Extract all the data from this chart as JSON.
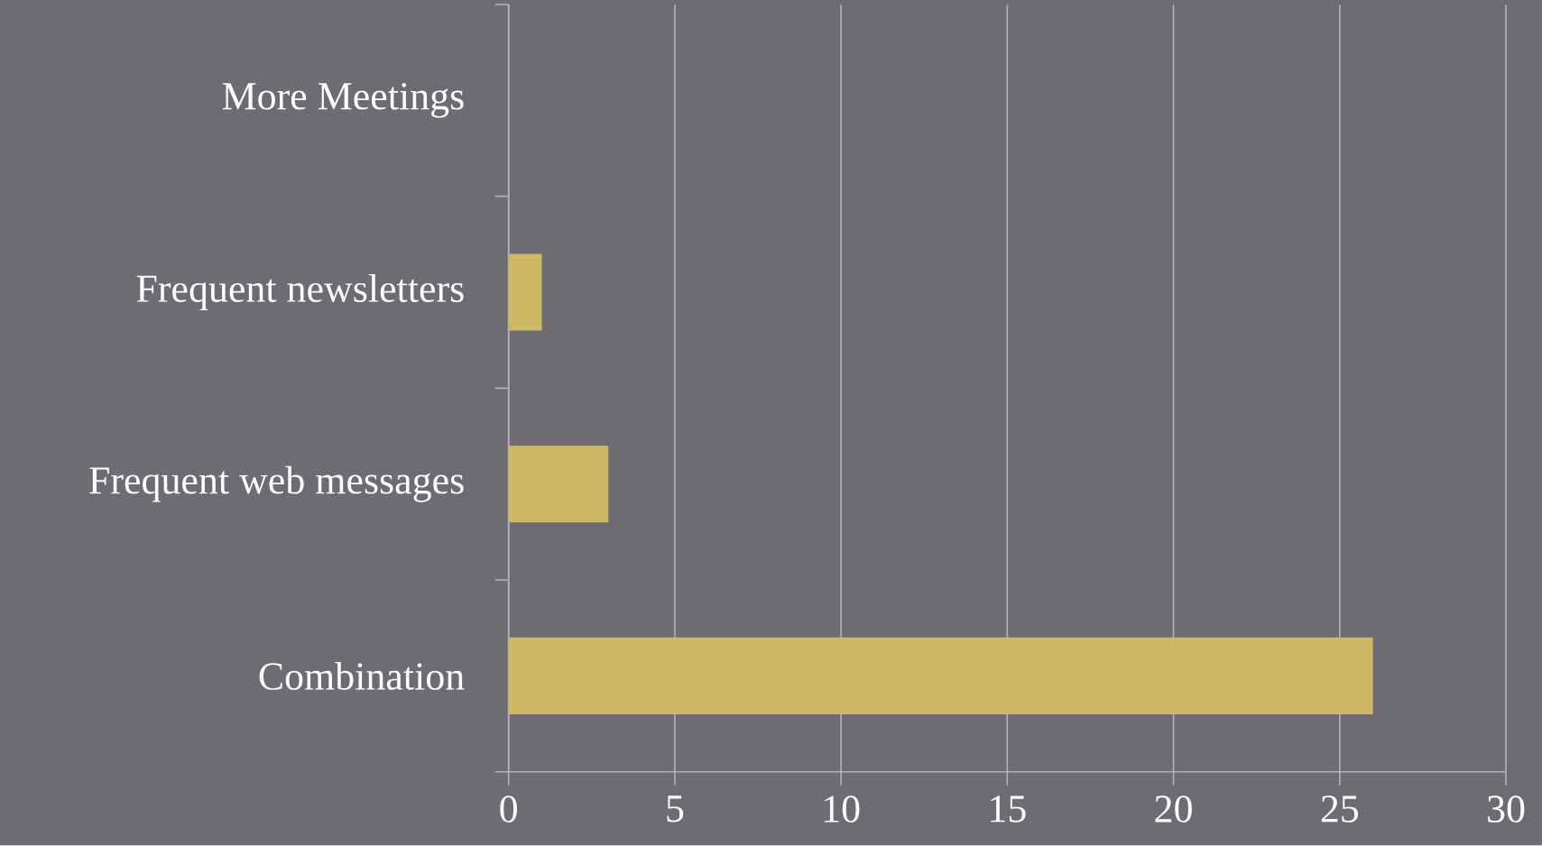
{
  "chart_data": {
    "type": "bar",
    "orientation": "horizontal",
    "categories": [
      "More Meetings",
      "Frequent newsletters",
      "Frequent web messages",
      "Combination"
    ],
    "values": [
      0,
      1,
      3,
      26
    ],
    "color": "#cdb866",
    "xlim": [
      0,
      30
    ],
    "xticks": [
      0,
      5,
      10,
      15,
      20,
      25,
      30
    ],
    "grid": "x"
  }
}
